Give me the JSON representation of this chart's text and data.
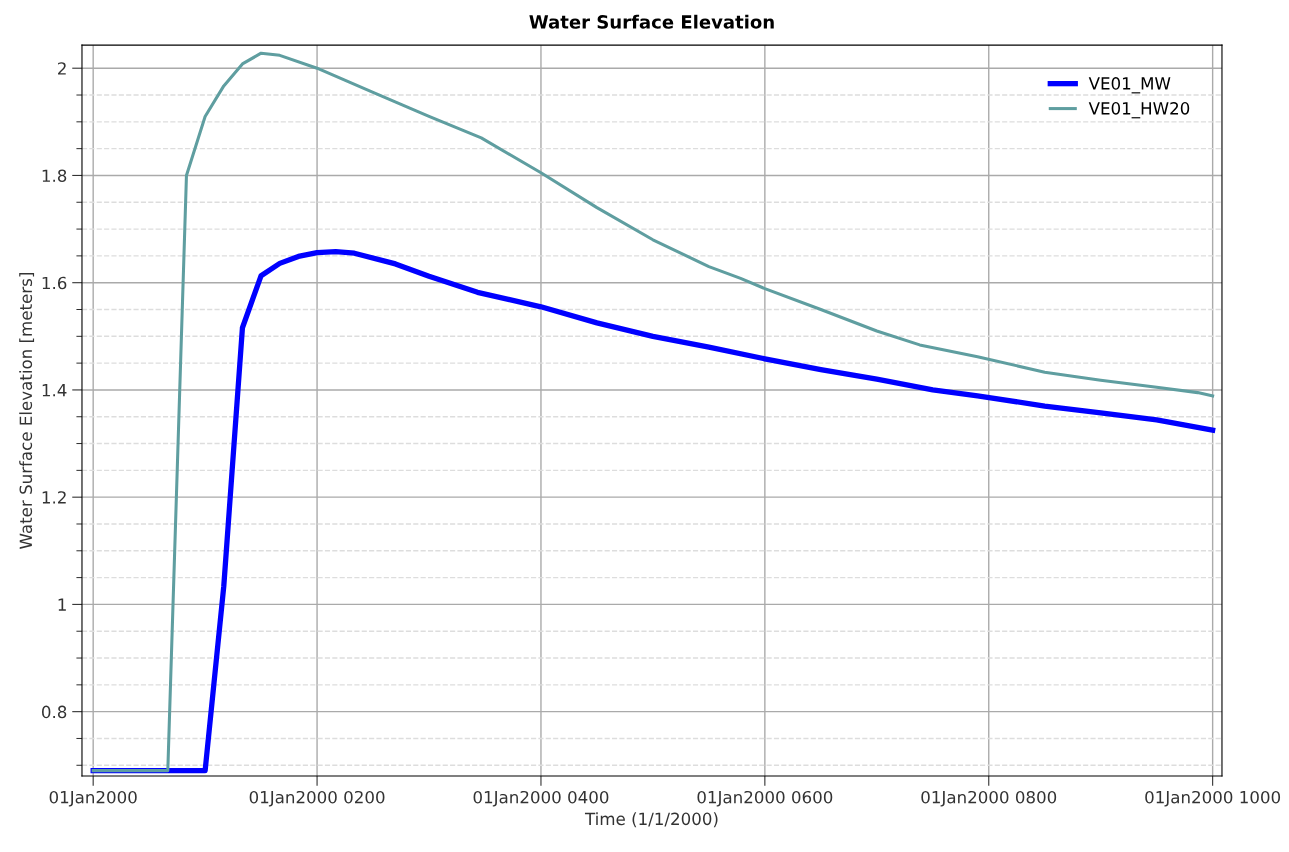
{
  "chart_data": {
    "type": "line",
    "title": "Water Surface Elevation",
    "xlabel": "Time (1/1/2000)",
    "ylabel": "Water Surface Elevation [meters]",
    "xlim": [
      "1999-12-31T23:54",
      "2000-01-01T10:05"
    ],
    "ylim": [
      0.68,
      2.043
    ],
    "xticks": [
      {
        "value": "2000-01-01T00:00",
        "label": "01Jan2000"
      },
      {
        "value": "2000-01-01T02:00",
        "label": "01Jan2000 0200"
      },
      {
        "value": "2000-01-01T04:00",
        "label": "01Jan2000 0400"
      },
      {
        "value": "2000-01-01T06:00",
        "label": "01Jan2000 0600"
      },
      {
        "value": "2000-01-01T08:00",
        "label": "01Jan2000 0800"
      },
      {
        "value": "2000-01-01T10:00",
        "label": "01Jan2000 1000"
      }
    ],
    "yticks": [
      {
        "value": 0.7,
        "label": null
      },
      {
        "value": 0.75,
        "label": null
      },
      0.8,
      {
        "value": 0.85,
        "label": null
      },
      {
        "value": 0.9,
        "label": null
      },
      {
        "value": 0.95,
        "label": null
      },
      1,
      {
        "value": 1.05,
        "label": null
      },
      {
        "value": 1.1,
        "label": null
      },
      {
        "value": 1.15,
        "label": null
      },
      1.2,
      {
        "value": 1.25,
        "label": null
      },
      {
        "value": 1.3,
        "label": null
      },
      {
        "value": 1.35,
        "label": null
      },
      1.4,
      {
        "value": 1.45,
        "label": null
      },
      {
        "value": 1.5,
        "label": null
      },
      {
        "value": 1.55,
        "label": null
      },
      1.6,
      {
        "value": 1.65,
        "label": null
      },
      {
        "value": 1.7,
        "label": null
      },
      {
        "value": 1.75,
        "label": null
      },
      1.8,
      {
        "value": 1.85,
        "label": null
      },
      {
        "value": 1.9,
        "label": null
      },
      {
        "value": 1.95,
        "label": null
      },
      2
    ],
    "grid": true,
    "legend": "top right",
    "line_style": "solid",
    "marker": "none",
    "series": [
      {
        "name": "VE01_MW",
        "color": "#0000ff",
        "x": [
          "2000-01-01T00:00",
          "2000-01-01T01:00",
          "2000-01-01T01:10",
          "2000-01-01T01:20",
          "2000-01-01T01:30",
          "2000-01-01T01:40",
          "2000-01-01T01:50",
          "2000-01-01T02:00",
          "2000-01-01T02:10",
          "2000-01-01T02:20",
          "2000-01-01T02:42",
          "2000-01-01T03:00",
          "2000-01-01T03:26",
          "2000-01-01T04:00",
          "2000-01-01T04:30",
          "2000-01-01T05:00",
          "2000-01-01T05:30",
          "2000-01-01T06:00",
          "2000-01-01T06:30",
          "2000-01-01T07:00",
          "2000-01-01T07:30",
          "2000-01-01T07:54",
          "2000-01-01T08:30",
          "2000-01-01T09:00",
          "2000-01-01T09:30",
          "2000-01-01T10:00"
        ],
        "values": [
          0.69,
          0.69,
          1.034,
          1.516,
          1.613,
          1.636,
          1.649,
          1.656,
          1.658,
          1.655,
          1.635,
          1.612,
          1.582,
          1.555,
          1.525,
          1.5,
          1.48,
          1.458,
          1.438,
          1.42,
          1.4,
          1.389,
          1.37,
          1.357,
          1.344,
          1.325
        ]
      },
      {
        "name": "VE01_HW20",
        "color": "#5f9ea0",
        "x": [
          "2000-01-01T00:00",
          "2000-01-01T00:40",
          "2000-01-01T00:50",
          "2000-01-01T01:00",
          "2000-01-01T01:10",
          "2000-01-01T01:20",
          "2000-01-01T01:30",
          "2000-01-01T01:40",
          "2000-01-01T02:00",
          "2000-01-01T02:30",
          "2000-01-01T03:00",
          "2000-01-01T03:28",
          "2000-01-01T04:00",
          "2000-01-01T04:30",
          "2000-01-01T05:00",
          "2000-01-01T05:30",
          "2000-01-01T05:47",
          "2000-01-01T06:00",
          "2000-01-01T06:30",
          "2000-01-01T07:00",
          "2000-01-01T07:23",
          "2000-01-01T07:54",
          "2000-01-01T08:30",
          "2000-01-01T09:00",
          "2000-01-01T09:30",
          "2000-01-01T09:52",
          "2000-01-01T10:00"
        ],
        "values": [
          0.69,
          0.69,
          1.8,
          1.91,
          1.967,
          2.008,
          2.028,
          2.024,
          2.0,
          1.955,
          1.91,
          1.87,
          1.805,
          1.74,
          1.68,
          1.63,
          1.608,
          1.589,
          1.55,
          1.51,
          1.484,
          1.462,
          1.433,
          1.418,
          1.405,
          1.395,
          1.389
        ]
      }
    ]
  }
}
